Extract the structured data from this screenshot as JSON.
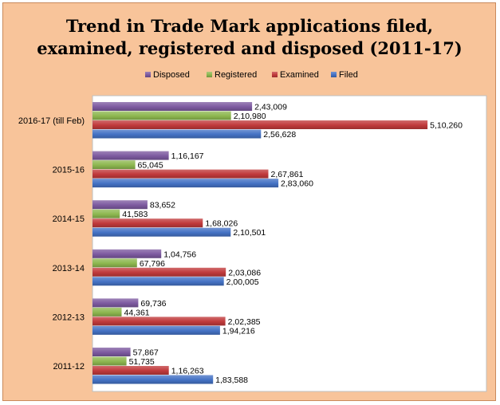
{
  "chart_data": {
    "type": "bar",
    "orientation": "horizontal",
    "title_lines": [
      "Trend in Trade Mark applications filed,",
      "examined, registered and disposed (2011-17)"
    ],
    "categories": [
      "2016-17 (till Feb)",
      "2015-16",
      "2014-15",
      "2013-14",
      "2012-13",
      "2011-12"
    ],
    "series": [
      {
        "name": "Disposed",
        "color": "#7d5aa0",
        "values": [
          243009,
          116167,
          83652,
          104756,
          69736,
          57867
        ],
        "labels": [
          "2,43,009",
          "1,16,167",
          "83,652",
          "1,04,756",
          "69,736",
          "57,867"
        ]
      },
      {
        "name": "Registered",
        "color": "#8db74f",
        "values": [
          210980,
          65045,
          41583,
          67796,
          44361,
          51735
        ],
        "labels": [
          "2,10,980",
          "65,045",
          "41,583",
          "67,796",
          "44,361",
          "51,735"
        ]
      },
      {
        "name": "Examined",
        "color": "#c0393b",
        "values": [
          510260,
          267861,
          168026,
          203086,
          202385,
          116263
        ],
        "labels": [
          "5,10,260",
          "2,67,861",
          "1,68,026",
          "2,03,086",
          "2,02,385",
          "1,16,263"
        ]
      },
      {
        "name": "Filed",
        "color": "#4472c4",
        "values": [
          256628,
          283060,
          210501,
          200005,
          194216,
          183588
        ],
        "labels": [
          "2,56,628",
          "2,83,060",
          "2,10,501",
          "2,00,005",
          "1,94,216",
          "1,83,588"
        ]
      }
    ],
    "legend_order": [
      "Disposed",
      "Registered",
      "Examined",
      "Filed"
    ],
    "legend_position": "top",
    "xlim": [
      0,
      600000
    ],
    "grid": false,
    "background_color": "#f8c49a",
    "plot_background": "#ffffff"
  }
}
